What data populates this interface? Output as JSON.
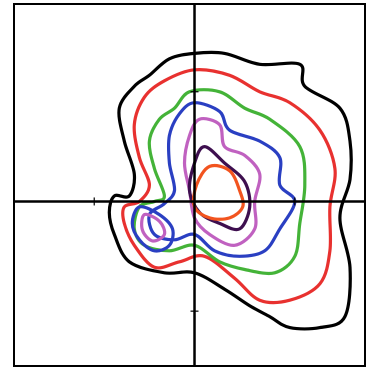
{
  "chart_data": {
    "type": "contour",
    "title": "",
    "xlabel": "",
    "ylabel": "",
    "xlim": [
      -1.8,
      1.7
    ],
    "ylim": [
      -1.5,
      1.8
    ],
    "grid": false,
    "legend": "none",
    "center": [
      0,
      0
    ],
    "series": [
      {
        "color": "#000000",
        "points": [
          [
            0.0,
            1.35
          ],
          [
            0.3,
            1.35
          ],
          [
            0.65,
            1.25
          ],
          [
            1.05,
            1.25
          ],
          [
            1.1,
            1.05
          ],
          [
            1.45,
            0.85
          ],
          [
            1.55,
            0.55
          ],
          [
            1.55,
            0.2
          ],
          [
            1.45,
            -0.15
          ],
          [
            1.55,
            -0.6
          ],
          [
            1.5,
            -1.05
          ],
          [
            1.25,
            -1.15
          ],
          [
            0.95,
            -1.15
          ],
          [
            0.75,
            -1.05
          ],
          [
            0.55,
            -0.95
          ],
          [
            0.3,
            -0.8
          ],
          [
            0.0,
            -0.65
          ],
          [
            -0.3,
            -0.65
          ],
          [
            -0.65,
            -0.55
          ],
          [
            -0.8,
            -0.3
          ],
          [
            -0.85,
            -0.1
          ],
          [
            -0.8,
            0.05
          ],
          [
            -0.65,
            0.05
          ],
          [
            -0.6,
            0.25
          ],
          [
            -0.7,
            0.55
          ],
          [
            -0.75,
            0.85
          ],
          [
            -0.6,
            1.05
          ],
          [
            -0.45,
            1.15
          ],
          [
            -0.25,
            1.3
          ]
        ]
      },
      {
        "color": "#e8312f",
        "points": [
          [
            0.0,
            1.2
          ],
          [
            0.35,
            1.15
          ],
          [
            0.65,
            1.0
          ],
          [
            0.95,
            0.9
          ],
          [
            1.25,
            0.65
          ],
          [
            1.4,
            0.3
          ],
          [
            1.35,
            -0.05
          ],
          [
            1.35,
            -0.45
          ],
          [
            1.25,
            -0.75
          ],
          [
            0.95,
            -0.9
          ],
          [
            0.65,
            -0.9
          ],
          [
            0.4,
            -0.7
          ],
          [
            0.1,
            -0.5
          ],
          [
            -0.15,
            -0.55
          ],
          [
            -0.4,
            -0.6
          ],
          [
            -0.6,
            -0.4
          ],
          [
            -0.7,
            -0.2
          ],
          [
            -0.7,
            -0.05
          ],
          [
            -0.55,
            0.0
          ],
          [
            -0.45,
            0.15
          ],
          [
            -0.55,
            0.4
          ],
          [
            -0.6,
            0.7
          ],
          [
            -0.5,
            0.95
          ],
          [
            -0.3,
            1.1
          ]
        ]
      },
      {
        "color": "#44b338",
        "points": [
          [
            -0.05,
            1.0
          ],
          [
            0.25,
            1.0
          ],
          [
            0.5,
            0.85
          ],
          [
            0.75,
            0.75
          ],
          [
            1.05,
            0.5
          ],
          [
            1.1,
            0.15
          ],
          [
            1.05,
            -0.2
          ],
          [
            1.0,
            -0.5
          ],
          [
            0.8,
            -0.65
          ],
          [
            0.5,
            -0.62
          ],
          [
            0.25,
            -0.55
          ],
          [
            0.0,
            -0.4
          ],
          [
            -0.25,
            -0.45
          ],
          [
            -0.5,
            -0.4
          ],
          [
            -0.6,
            -0.25
          ],
          [
            -0.55,
            -0.05
          ],
          [
            -0.4,
            0.0
          ],
          [
            -0.3,
            0.05
          ],
          [
            -0.4,
            0.3
          ],
          [
            -0.45,
            0.55
          ],
          [
            -0.35,
            0.75
          ],
          [
            -0.2,
            0.85
          ]
        ]
      },
      {
        "color": "#2a3fc2",
        "points": [
          [
            0.0,
            0.9
          ],
          [
            0.25,
            0.82
          ],
          [
            0.35,
            0.65
          ],
          [
            0.65,
            0.55
          ],
          [
            0.85,
            0.4
          ],
          [
            0.85,
            0.15
          ],
          [
            1.0,
            0.0
          ],
          [
            0.85,
            -0.25
          ],
          [
            0.7,
            -0.45
          ],
          [
            0.45,
            -0.5
          ],
          [
            0.2,
            -0.45
          ],
          [
            0.0,
            -0.3
          ],
          [
            -0.2,
            -0.35
          ],
          [
            -0.4,
            -0.3
          ],
          [
            -0.45,
            -0.12
          ],
          [
            -0.3,
            -0.02
          ],
          [
            -0.2,
            0.1
          ],
          [
            -0.25,
            0.35
          ],
          [
            -0.25,
            0.6
          ],
          [
            -0.15,
            0.8
          ]
        ]
      },
      {
        "color": "#c061c0",
        "points": [
          [
            0.05,
            0.75
          ],
          [
            0.25,
            0.7
          ],
          [
            0.3,
            0.5
          ],
          [
            0.5,
            0.42
          ],
          [
            0.65,
            0.25
          ],
          [
            0.6,
            0.0
          ],
          [
            0.6,
            -0.25
          ],
          [
            0.4,
            -0.4
          ],
          [
            0.15,
            -0.3
          ],
          [
            0.0,
            -0.15
          ],
          [
            -0.05,
            0.1
          ],
          [
            -0.1,
            0.35
          ],
          [
            -0.05,
            0.6
          ]
        ]
      },
      {
        "color": "#3e0f4f",
        "points": [
          [
            0.1,
            0.5
          ],
          [
            0.3,
            0.35
          ],
          [
            0.5,
            0.18
          ],
          [
            0.55,
            -0.05
          ],
          [
            0.45,
            -0.25
          ],
          [
            0.25,
            -0.2
          ],
          [
            0.05,
            -0.1
          ],
          [
            -0.05,
            0.1
          ],
          [
            0.0,
            0.35
          ]
        ]
      },
      {
        "color": "#f2541f",
        "points": [
          [
            0.15,
            0.32
          ],
          [
            0.35,
            0.28
          ],
          [
            0.45,
            0.1
          ],
          [
            0.48,
            -0.05
          ],
          [
            0.35,
            -0.15
          ],
          [
            0.15,
            -0.15
          ],
          [
            0.0,
            -0.05
          ],
          [
            0.02,
            0.15
          ]
        ]
      },
      {
        "color": "#2a3fc2",
        "points": [
          [
            -0.55,
            -0.05
          ],
          [
            -0.35,
            -0.12
          ],
          [
            -0.22,
            -0.25
          ],
          [
            -0.25,
            -0.4
          ],
          [
            -0.4,
            -0.45
          ],
          [
            -0.55,
            -0.35
          ],
          [
            -0.62,
            -0.2
          ]
        ]
      },
      {
        "color": "#c061c0",
        "points": [
          [
            -0.5,
            -0.12
          ],
          [
            -0.35,
            -0.18
          ],
          [
            -0.3,
            -0.3
          ],
          [
            -0.42,
            -0.36
          ],
          [
            -0.52,
            -0.26
          ]
        ]
      }
    ]
  }
}
